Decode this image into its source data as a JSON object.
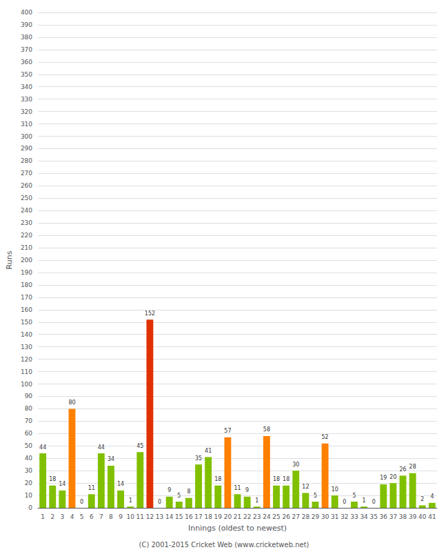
{
  "chart_data": {
    "type": "bar",
    "categories": [
      "1",
      "2",
      "3",
      "4",
      "5",
      "6",
      "7",
      "8",
      "9",
      "10",
      "11",
      "12",
      "13",
      "14",
      "15",
      "16",
      "17",
      "18",
      "19",
      "20",
      "21",
      "22",
      "23",
      "24",
      "25",
      "26",
      "27",
      "28",
      "29",
      "30",
      "31",
      "32",
      "33",
      "34",
      "35",
      "36",
      "37",
      "38",
      "39",
      "40",
      "41"
    ],
    "values": [
      44,
      18,
      14,
      80,
      0,
      11,
      44,
      34,
      14,
      1,
      45,
      152,
      0,
      9,
      5,
      8,
      35,
      41,
      18,
      57,
      11,
      9,
      1,
      58,
      18,
      18,
      30,
      12,
      5,
      52,
      10,
      0,
      5,
      1,
      0,
      19,
      20,
      26,
      28,
      2,
      4
    ],
    "colors": [
      "#80c000",
      "#80c000",
      "#80c000",
      "#ff8000",
      "#80c000",
      "#80c000",
      "#80c000",
      "#80c000",
      "#80c000",
      "#80c000",
      "#80c000",
      "#e03000",
      "#80c000",
      "#80c000",
      "#80c000",
      "#80c000",
      "#80c000",
      "#80c000",
      "#80c000",
      "#ff8000",
      "#80c000",
      "#80c000",
      "#80c000",
      "#ff8000",
      "#80c000",
      "#80c000",
      "#80c000",
      "#80c000",
      "#80c000",
      "#ff8000",
      "#80c000",
      "#80c000",
      "#80c000",
      "#80c000",
      "#80c000",
      "#80c000",
      "#80c000",
      "#80c000",
      "#80c000",
      "#80c000",
      "#80c000"
    ],
    "xlabel": "Innings (oldest to newest)",
    "ylabel": "Runs",
    "ylim": [
      0,
      400
    ],
    "yticks": [
      0,
      10,
      20,
      30,
      40,
      50,
      60,
      70,
      80,
      90,
      100,
      110,
      120,
      130,
      140,
      150,
      160,
      170,
      180,
      190,
      200,
      210,
      220,
      230,
      240,
      250,
      260,
      270,
      280,
      290,
      300,
      310,
      320,
      330,
      340,
      350,
      360,
      370,
      380,
      390,
      400
    ],
    "grid": true,
    "data_labels": true,
    "annotations": [
      "(C) 2001-2015 Cricket Web (www.cricketweb.net)"
    ]
  }
}
